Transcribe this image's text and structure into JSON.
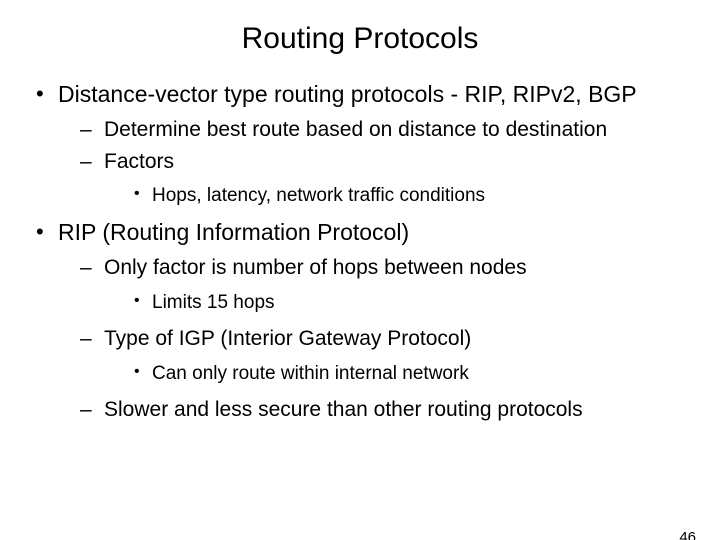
{
  "title": "Routing Protocols",
  "page_number": "46",
  "colors": {
    "background": "#ffffff",
    "text": "#000000"
  },
  "typography": {
    "title_fontsize": 30,
    "l1_fontsize": 23,
    "l2_fontsize": 21,
    "l3_fontsize": 19,
    "font_family": "Arial"
  },
  "bullets": [
    {
      "text": "Distance-vector type routing protocols - RIP, RIPv2, BGP",
      "children": [
        {
          "text": "Determine best route based on distance to destination"
        },
        {
          "text": "Factors",
          "children": [
            {
              "text": "Hops, latency, network traffic conditions"
            }
          ]
        }
      ]
    },
    {
      "text": "RIP (Routing Information Protocol)",
      "children": [
        {
          "text": "Only factor is number of hops between nodes",
          "children": [
            {
              "text": "Limits 15 hops"
            }
          ]
        },
        {
          "text": "Type of IGP (Interior Gateway Protocol)",
          "children": [
            {
              "text": "Can only route within internal network"
            }
          ]
        },
        {
          "text": "Slower and less secure than other routing protocols"
        }
      ]
    }
  ]
}
